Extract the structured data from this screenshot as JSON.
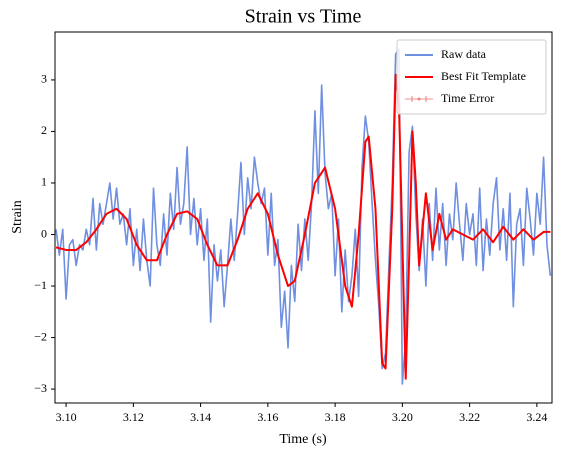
{
  "chart_data": {
    "type": "line",
    "title": "Strain vs Time",
    "xlabel": "Time (s)",
    "ylabel": "Strain",
    "xlim": [
      3.0967,
      3.2445
    ],
    "ylim": [
      -3.27,
      3.93
    ],
    "xticks": [
      {
        "value": 3.1,
        "label": "3.10"
      },
      {
        "value": 3.12,
        "label": "3.12"
      },
      {
        "value": 3.14,
        "label": "3.14"
      },
      {
        "value": 3.16,
        "label": "3.16"
      },
      {
        "value": 3.18,
        "label": "3.18"
      },
      {
        "value": 3.2,
        "label": "3.20"
      },
      {
        "value": 3.22,
        "label": "3.22"
      },
      {
        "value": 3.24,
        "label": "3.24"
      }
    ],
    "yticks": [
      {
        "value": -3,
        "label": "−3"
      },
      {
        "value": -2,
        "label": "−2"
      },
      {
        "value": -1,
        "label": "−1"
      },
      0,
      1,
      2,
      3
    ],
    "legend": "upper right",
    "grid": false,
    "series": [
      {
        "name": "Raw data",
        "color": "#6f8fe0",
        "x": [
          3.097,
          3.098,
          3.099,
          3.1,
          3.101,
          3.102,
          3.103,
          3.104,
          3.105,
          3.106,
          3.107,
          3.108,
          3.109,
          3.11,
          3.111,
          3.112,
          3.113,
          3.114,
          3.115,
          3.116,
          3.117,
          3.118,
          3.119,
          3.12,
          3.121,
          3.122,
          3.123,
          3.124,
          3.125,
          3.126,
          3.127,
          3.128,
          3.129,
          3.13,
          3.131,
          3.132,
          3.133,
          3.134,
          3.135,
          3.136,
          3.137,
          3.138,
          3.139,
          3.14,
          3.141,
          3.142,
          3.143,
          3.144,
          3.145,
          3.146,
          3.147,
          3.148,
          3.149,
          3.15,
          3.151,
          3.152,
          3.153,
          3.154,
          3.155,
          3.156,
          3.157,
          3.158,
          3.159,
          3.16,
          3.161,
          3.162,
          3.163,
          3.164,
          3.165,
          3.166,
          3.167,
          3.168,
          3.169,
          3.17,
          3.171,
          3.172,
          3.173,
          3.174,
          3.175,
          3.176,
          3.177,
          3.178,
          3.179,
          3.18,
          3.181,
          3.182,
          3.183,
          3.184,
          3.185,
          3.186,
          3.187,
          3.188,
          3.189,
          3.19,
          3.191,
          3.192,
          3.193,
          3.194,
          3.195,
          3.196,
          3.197,
          3.198,
          3.199,
          3.2,
          3.201,
          3.202,
          3.203,
          3.204,
          3.205,
          3.206,
          3.207,
          3.208,
          3.209,
          3.21,
          3.211,
          3.212,
          3.213,
          3.214,
          3.215,
          3.216,
          3.217,
          3.218,
          3.219,
          3.22,
          3.221,
          3.222,
          3.223,
          3.224,
          3.225,
          3.226,
          3.227,
          3.228,
          3.229,
          3.23,
          3.231,
          3.232,
          3.233,
          3.234,
          3.235,
          3.236,
          3.237,
          3.238,
          3.239,
          3.24,
          3.241,
          3.242,
          3.243,
          3.244
        ],
        "values": [
          0.1,
          -0.4,
          0.1,
          -1.25,
          -0.2,
          -0.1,
          -0.6,
          -0.2,
          -0.3,
          0.1,
          -0.2,
          0.7,
          -0.3,
          0.6,
          0.2,
          0.6,
          1.0,
          0.3,
          0.9,
          0.2,
          0.4,
          -0.2,
          0.5,
          -0.6,
          0.1,
          -0.7,
          0.3,
          -0.5,
          -1.0,
          0.9,
          -0.2,
          -0.6,
          0.4,
          -0.4,
          0.8,
          0.1,
          1.3,
          0.2,
          0.6,
          1.7,
          0.0,
          0.7,
          -0.2,
          0.5,
          -0.5,
          0.3,
          -1.7,
          -0.2,
          -0.9,
          -0.3,
          -1.4,
          -0.6,
          0.3,
          -0.5,
          0.4,
          1.4,
          0.0,
          1.1,
          0.5,
          1.5,
          1.0,
          0.6,
          0.9,
          -0.4,
          0.8,
          -0.6,
          -0.1,
          -1.8,
          -1.1,
          -2.2,
          -0.6,
          -1.3,
          0.2,
          -0.7,
          0.3,
          -0.5,
          0.6,
          2.4,
          0.8,
          2.9,
          1.2,
          0.5,
          0.8,
          -0.8,
          0.3,
          -1.5,
          -0.3,
          -1.3,
          -0.8,
          0.1,
          -1.2,
          1.3,
          2.3,
          1.8,
          0.6,
          -0.5,
          -1.4,
          -2.6,
          -2.3,
          -0.6,
          1.0,
          3.5,
          3.6,
          -2.9,
          -2.0,
          1.6,
          2.1,
          0.4,
          -0.7,
          0.3,
          -1.0,
          0.6,
          -0.5,
          0.9,
          -0.3,
          0.6,
          -0.6,
          0.4,
          -0.1,
          1.0,
          0.2,
          -0.5,
          0.6,
          0.0,
          0.4,
          -0.6,
          0.9,
          -0.7,
          0.3,
          -0.4,
          0.6,
          1.1,
          -0.3,
          0.5,
          -0.5,
          0.8,
          -1.4,
          0.2,
          0.5,
          -0.6,
          0.9,
          0.3,
          -0.4,
          0.8,
          0.2,
          1.5,
          -0.2,
          -0.8
        ]
      },
      {
        "name": "Best Fit Template",
        "color": "#ff0000",
        "x": [
          3.097,
          3.1,
          3.103,
          3.106,
          3.109,
          3.112,
          3.115,
          3.118,
          3.121,
          3.124,
          3.127,
          3.13,
          3.133,
          3.136,
          3.139,
          3.142,
          3.145,
          3.148,
          3.151,
          3.154,
          3.157,
          3.16,
          3.163,
          3.166,
          3.168,
          3.171,
          3.174,
          3.177,
          3.18,
          3.183,
          3.185,
          3.187,
          3.189,
          3.19,
          3.192,
          3.194,
          3.195,
          3.197,
          3.198,
          3.199,
          3.201,
          3.202,
          3.203,
          3.204,
          3.205,
          3.207,
          3.209,
          3.211,
          3.213,
          3.215,
          3.218,
          3.221,
          3.224,
          3.227,
          3.23,
          3.233,
          3.236,
          3.239,
          3.242,
          3.244
        ],
        "values": [
          -0.25,
          -0.3,
          -0.3,
          -0.15,
          0.1,
          0.4,
          0.5,
          0.3,
          -0.2,
          -0.5,
          -0.5,
          0.0,
          0.4,
          0.45,
          0.3,
          -0.2,
          -0.6,
          -0.6,
          -0.1,
          0.5,
          0.8,
          0.4,
          -0.4,
          -1.0,
          -0.9,
          0.0,
          1.0,
          1.3,
          0.5,
          -1.0,
          -1.4,
          0.0,
          1.8,
          1.9,
          0.5,
          -2.5,
          -2.6,
          0.5,
          3.1,
          2.5,
          -2.8,
          -0.5,
          2.0,
          1.0,
          -0.6,
          0.8,
          -0.3,
          0.4,
          -0.1,
          0.1,
          0.0,
          -0.1,
          0.1,
          -0.15,
          0.15,
          -0.1,
          0.1,
          -0.1,
          0.05,
          0.05
        ]
      },
      {
        "name": "Time Error",
        "color": "#f08080"
      }
    ]
  }
}
